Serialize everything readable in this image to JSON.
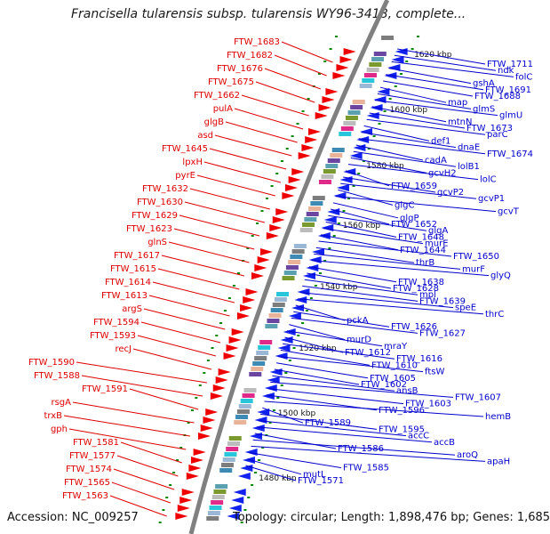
{
  "title": "Francisella tularensis subsp. tularensis WY96-3418, complete...",
  "footer": {
    "accession": "Accession: NC_009257",
    "summary": "Topology: circular; Length: 1,898,476 bp; Genes: 1,685"
  },
  "colors": {
    "reverse_strand_label": "#dd0000",
    "forward_strand_label": "#0000cc",
    "backbone": "#808080",
    "tick": "#008800",
    "reverse_arrow": "#ee0000",
    "forward_arrow": "#1122ee"
  },
  "scale_labels": [
    "1620 kbp",
    "1600 kbp",
    "1580 kbp",
    "1560 kbp",
    "1540 kbp",
    "1520 kbp",
    "1500 kbp",
    "1480 kbp"
  ],
  "reverse_genes": [
    "FTW_1683",
    "FTW_1682",
    "FTW_1676",
    "FTW_1675",
    "FTW_1662",
    "pulA",
    "glgB",
    "asd",
    "FTW_1645",
    "lpxH",
    "pyrE",
    "FTW_1632",
    "FTW_1630",
    "FTW_1629",
    "FTW_1623",
    "glnS",
    "FTW_1617",
    "FTW_1615",
    "FTW_1614",
    "FTW_1613",
    "argS",
    "FTW_1594",
    "FTW_1593",
    "recJ",
    "FTW_1590",
    "FTW_1588",
    "FTW_1591",
    "rsgA",
    "trxB",
    "gph",
    "FTW_1581",
    "FTW_1577",
    "FTW_1574",
    "FTW_1565",
    "FTW_1563"
  ],
  "forward_genes": [
    "FTW_1711",
    "ndk",
    "folC",
    "gshA",
    "FTW_1691",
    "FTW_1688",
    "map",
    "glmS",
    "glmU",
    "mtnN",
    "FTW_1673",
    "parC",
    "def1",
    "dnaE",
    "FTW_1674",
    "cadA",
    "lolB1",
    "gcvH2",
    "lolC",
    "FTW_1659",
    "gcvP2",
    "gcvP1",
    "glgC",
    "gcvT",
    "glgP",
    "FTW_1652",
    "glgA",
    "FTW_1648",
    "murE",
    "FTW_1644",
    "FTW_1650",
    "thrB",
    "murF",
    "glyQ",
    "FTW_1638",
    "FTW_1628",
    "mpl",
    "FTW_1639",
    "speE",
    "thrC",
    "pckA",
    "FTW_1626",
    "FTW_1627",
    "murD",
    "mraY",
    "FTW_1612",
    "FTW_1616",
    "FTW_1610",
    "ftsW",
    "FTW_1605",
    "FTW_1602",
    "ansB",
    "FTW_1607",
    "FTW_1603",
    "FTW_1596",
    "hemB",
    "FTW_1589",
    "FTW_1595",
    "accC",
    "accB",
    "FTW_1586",
    "aroQ",
    "apaH",
    "FTW_1585",
    "mutL",
    "FTW_1571"
  ]
}
